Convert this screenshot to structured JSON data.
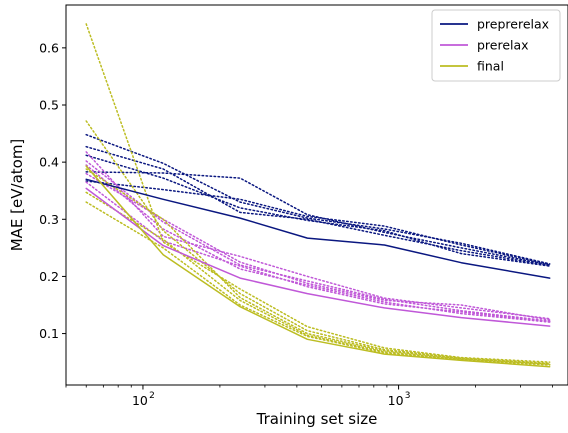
{
  "chart_data": {
    "type": "line",
    "xlabel": "Training set size",
    "ylabel": "MAE [eV/atom]",
    "xscale": "log",
    "xlim": [
      50,
      4600
    ],
    "ylim": [
      0.01,
      0.675
    ],
    "x_ticks": [
      {
        "value": 100,
        "base": "10",
        "exp": "2"
      },
      {
        "value": 1000,
        "base": "10",
        "exp": "3"
      }
    ],
    "y_ticks": [
      {
        "value": 0.1,
        "label": "0.1"
      },
      {
        "value": 0.2,
        "label": "0.2"
      },
      {
        "value": 0.3,
        "label": "0.3"
      },
      {
        "value": 0.4,
        "label": "0.4"
      },
      {
        "value": 0.5,
        "label": "0.5"
      },
      {
        "value": 0.6,
        "label": "0.6"
      }
    ],
    "grid": false,
    "legend_position": "top-right",
    "x": [
      60,
      120,
      240,
      440,
      880,
      1760,
      3900
    ],
    "series": [
      {
        "name": "preprerelax",
        "color": "#0a1780",
        "style": "solid",
        "values": [
          0.37,
          0.335,
          0.302,
          0.267,
          0.255,
          0.224,
          0.197
        ]
      },
      {
        "name": "prerelax",
        "color": "#c058d8",
        "style": "solid",
        "values": [
          0.354,
          0.254,
          0.197,
          0.17,
          0.145,
          0.128,
          0.113
        ]
      },
      {
        "name": "final",
        "color": "#bcbd22",
        "style": "solid",
        "values": [
          0.393,
          0.238,
          0.147,
          0.09,
          0.064,
          0.053,
          0.042
        ]
      },
      {
        "color": "#0a1780",
        "style": "dotted",
        "values": [
          0.448,
          0.398,
          0.33,
          0.302,
          0.283,
          0.258,
          0.222
        ]
      },
      {
        "color": "#0a1780",
        "style": "dotted",
        "values": [
          0.427,
          0.388,
          0.312,
          0.3,
          0.272,
          0.245,
          0.219
        ]
      },
      {
        "color": "#0a1780",
        "style": "dotted",
        "values": [
          0.412,
          0.372,
          0.32,
          0.298,
          0.28,
          0.24,
          0.218
        ]
      },
      {
        "color": "#0a1780",
        "style": "dotted",
        "values": [
          0.383,
          0.381,
          0.372,
          0.308,
          0.277,
          0.25,
          0.22
        ]
      },
      {
        "color": "#0a1780",
        "style": "dotted",
        "values": [
          0.367,
          0.352,
          0.335,
          0.305,
          0.288,
          0.255,
          0.221
        ]
      },
      {
        "color": "#c058d8",
        "style": "dotted",
        "values": [
          0.418,
          0.27,
          0.235,
          0.2,
          0.162,
          0.145,
          0.126
        ]
      },
      {
        "color": "#c058d8",
        "style": "dotted",
        "values": [
          0.402,
          0.295,
          0.22,
          0.192,
          0.16,
          0.14,
          0.122
        ]
      },
      {
        "color": "#c058d8",
        "style": "dotted",
        "values": [
          0.395,
          0.283,
          0.213,
          0.185,
          0.155,
          0.135,
          0.12
        ]
      },
      {
        "color": "#c058d8",
        "style": "dotted",
        "values": [
          0.38,
          0.3,
          0.225,
          0.188,
          0.158,
          0.15,
          0.124
        ]
      },
      {
        "color": "#c058d8",
        "style": "dotted",
        "values": [
          0.365,
          0.262,
          0.218,
          0.182,
          0.152,
          0.138,
          0.121
        ]
      },
      {
        "color": "#bcbd22",
        "style": "dotted",
        "values": [
          0.642,
          0.26,
          0.178,
          0.112,
          0.075,
          0.058,
          0.05
        ]
      },
      {
        "color": "#bcbd22",
        "style": "dotted",
        "values": [
          0.472,
          0.28,
          0.17,
          0.105,
          0.072,
          0.057,
          0.048
        ]
      },
      {
        "color": "#bcbd22",
        "style": "dotted",
        "values": [
          0.388,
          0.3,
          0.163,
          0.1,
          0.07,
          0.056,
          0.047
        ]
      },
      {
        "color": "#bcbd22",
        "style": "dotted",
        "values": [
          0.347,
          0.265,
          0.158,
          0.097,
          0.068,
          0.055,
          0.046
        ]
      },
      {
        "color": "#bcbd22",
        "style": "dotted",
        "values": [
          0.33,
          0.25,
          0.15,
          0.095,
          0.066,
          0.054,
          0.045
        ]
      }
    ]
  }
}
